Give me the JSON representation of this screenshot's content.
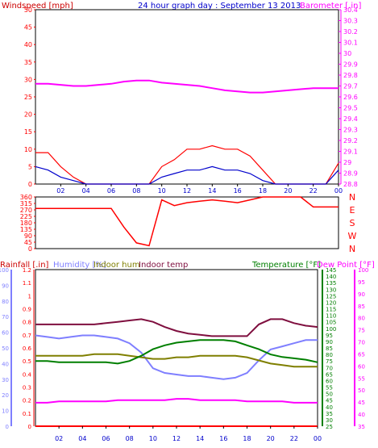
{
  "header": {
    "windspeed_label": "Windspeed [mph]",
    "title": "24 hour graph day : September 13 2013",
    "barometer_label": "Barometer [.in]"
  },
  "colors": {
    "red": "#ff0000",
    "blue": "#0000cc",
    "magenta": "#ff00ff",
    "lavender": "#7f7fff",
    "olive": "#7f7f00",
    "maroon": "#7f0f3f",
    "green": "#007f00",
    "yellow": "#ffff00",
    "frame": "#000000",
    "text_blue": "#0000cc"
  },
  "x_ticks": [
    "02",
    "04",
    "06",
    "08",
    "10",
    "12",
    "14",
    "16",
    "18",
    "20",
    "22",
    "00"
  ],
  "chart_data": [
    {
      "type": "line",
      "panel": "wind",
      "title": "24 hour graph day : September 13 2013",
      "ylabel_left": "Windspeed [mph]",
      "ylabel_right": "Barometer [.in]",
      "y_left_ticks": [
        "0",
        "5",
        "10",
        "15",
        "20",
        "25",
        "30",
        "35",
        "40",
        "45",
        "50"
      ],
      "y_left_range": [
        0,
        50
      ],
      "y_right_ticks": [
        "28.8",
        "28.9",
        "29",
        "29.1",
        "29.2",
        "29.3",
        "29.4",
        "29.5",
        "29.6",
        "29.7",
        "29.8",
        "29.9",
        "30",
        "30.1",
        "30.2",
        "30.3",
        "30.4"
      ],
      "y_right_range": [
        28.8,
        30.4
      ],
      "x": [
        0,
        1,
        2,
        3,
        4,
        5,
        6,
        7,
        8,
        9,
        10,
        11,
        12,
        13,
        14,
        15,
        16,
        17,
        18,
        19,
        20,
        21,
        22,
        23,
        24
      ],
      "series": [
        {
          "axis": "right",
          "color": "magenta",
          "values": [
            29.72,
            29.72,
            29.71,
            29.7,
            29.7,
            29.71,
            29.72,
            29.74,
            29.75,
            29.75,
            29.73,
            29.72,
            29.71,
            29.7,
            29.68,
            29.66,
            29.65,
            29.64,
            29.64,
            29.65,
            29.66,
            29.67,
            29.68,
            29.68,
            29.68
          ]
        },
        {
          "axis": "left",
          "color": "red",
          "values": [
            9,
            9,
            5,
            2,
            0,
            0,
            0,
            0,
            0,
            0,
            5,
            7,
            10,
            10,
            11,
            10,
            10,
            8,
            4,
            0,
            0,
            0,
            0,
            0,
            6
          ]
        },
        {
          "axis": "left",
          "color": "blue",
          "values": [
            5,
            4,
            2,
            1,
            0,
            0,
            0,
            0,
            0,
            0,
            2,
            3,
            4,
            4,
            5,
            4,
            4,
            3,
            1,
            0,
            0,
            0,
            0,
            0,
            4
          ]
        }
      ]
    },
    {
      "type": "line",
      "panel": "direction",
      "y_left_ticks": [
        "0",
        "45",
        "90",
        "135",
        "180",
        "225",
        "270",
        "315",
        "360"
      ],
      "y_left_range": [
        0,
        360
      ],
      "y_right_ticks": [
        "N",
        "W",
        "S",
        "E",
        "N"
      ],
      "x": [
        0,
        1,
        2,
        3,
        4,
        5,
        6,
        7,
        8,
        9,
        10,
        11,
        12,
        13,
        14,
        15,
        16,
        17,
        18,
        19,
        20,
        21,
        22,
        23,
        24
      ],
      "series": [
        {
          "axis": "left",
          "color": "red",
          "values": [
            280,
            280,
            280,
            280,
            280,
            280,
            280,
            150,
            40,
            20,
            340,
            300,
            320,
            330,
            340,
            330,
            320,
            340,
            360,
            360,
            360,
            360,
            290,
            290,
            290
          ]
        }
      ]
    },
    {
      "type": "line",
      "panel": "climate",
      "legend": [
        {
          "label": "Rainfall [.in]",
          "color": "red"
        },
        {
          "label": "Humidity [%]",
          "color": "lavender"
        },
        {
          "label": "Indoor hum",
          "color": "olive"
        },
        {
          "label": "Indoor temp",
          "color": "maroon"
        },
        {
          "label": "Temperature [°F]",
          "color": "green"
        },
        {
          "label": "Dew Point [°F]",
          "color": "magenta"
        }
      ],
      "y_rain_ticks": [
        "0",
        "0.1",
        "0.2",
        "0.3",
        "0.4",
        "0.5",
        "0.6",
        "0.7",
        "0.8",
        "0.9",
        "1",
        "1.1",
        "1.2"
      ],
      "y_rain_range": [
        0,
        1.2
      ],
      "y_hum_ticks": [
        "0",
        "10",
        "20",
        "30",
        "40",
        "50",
        "60",
        "70",
        "80",
        "90",
        "100"
      ],
      "y_hum_range": [
        0,
        100
      ],
      "y_temp_ticks": [
        "25",
        "30",
        "35",
        "40",
        "45",
        "50",
        "55",
        "60",
        "65",
        "70",
        "75",
        "80",
        "85",
        "90",
        "95",
        "100",
        "105",
        "110",
        "115",
        "120",
        "125",
        "130",
        "135",
        "140",
        "145"
      ],
      "y_temp_range": [
        25,
        145
      ],
      "y_dew_ticks": [
        "35",
        "40",
        "45",
        "50",
        "55",
        "60",
        "65",
        "70",
        "75",
        "80",
        "85",
        "90",
        "95",
        "100"
      ],
      "y_dew_range": [
        35,
        100
      ],
      "x": [
        0,
        1,
        2,
        3,
        4,
        5,
        6,
        7,
        8,
        9,
        10,
        11,
        12,
        13,
        14,
        15,
        16,
        17,
        18,
        19,
        20,
        21,
        22,
        23,
        24
      ],
      "series": [
        {
          "name": "Rainfall [.in]",
          "axis": "rain",
          "color": "red",
          "values": [
            0,
            0,
            0,
            0,
            0,
            0,
            0,
            0,
            0,
            0,
            0,
            0,
            0,
            0,
            0,
            0,
            0,
            0,
            0,
            0,
            0,
            0,
            0,
            0,
            0
          ]
        },
        {
          "name": "Humidity [%]",
          "axis": "hum",
          "color": "lavender",
          "values": [
            58,
            57,
            56,
            57,
            58,
            58,
            57,
            56,
            53,
            47,
            37,
            34,
            33,
            32,
            32,
            31,
            30,
            31,
            34,
            42,
            49,
            51,
            53,
            55,
            55
          ]
        },
        {
          "name": "Indoor hum",
          "axis": "hum",
          "color": "olive",
          "values": [
            45,
            45,
            45,
            45,
            45,
            46,
            46,
            46,
            45,
            44,
            43,
            43,
            44,
            44,
            45,
            45,
            45,
            45,
            44,
            42,
            40,
            39,
            38,
            38,
            38
          ]
        },
        {
          "name": "Indoor temp",
          "axis": "temp",
          "color": "maroon",
          "values": [
            103,
            103,
            103,
            103,
            103,
            103,
            104,
            105,
            106,
            107,
            105,
            101,
            98,
            96,
            95,
            94,
            94,
            94,
            94,
            103,
            107,
            107,
            104,
            102,
            101
          ]
        },
        {
          "name": "Temperature [°F]",
          "axis": "temp",
          "color": "green",
          "values": [
            75,
            75,
            74,
            74,
            74,
            74,
            74,
            73,
            75,
            79,
            84,
            87,
            89,
            90,
            91,
            91,
            91,
            90,
            87,
            84,
            80,
            78,
            77,
            76,
            74
          ]
        },
        {
          "name": "Dew Point [°F]",
          "axis": "temp",
          "color": "magenta",
          "values": [
            43,
            43,
            44,
            44,
            44,
            44,
            44,
            45,
            45,
            45,
            45,
            45,
            46,
            46,
            45,
            45,
            45,
            45,
            44,
            44,
            44,
            44,
            43,
            43,
            43
          ]
        }
      ]
    }
  ]
}
